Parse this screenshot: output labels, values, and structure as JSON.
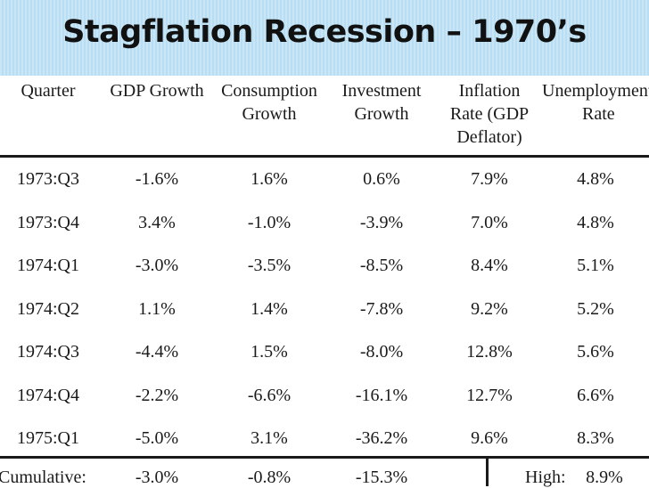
{
  "title": "Stagflation Recession – 1970’s",
  "headers": [
    [
      "Quarter"
    ],
    [
      "GDP Growth"
    ],
    [
      "Consumption",
      "Growth"
    ],
    [
      "Investment",
      "Growth"
    ],
    [
      "Inflation",
      "Rate (GDP",
      "Deflator)"
    ],
    [
      "Unemployment",
      "Rate"
    ]
  ],
  "rows": [
    [
      "1973:Q3",
      "-1.6%",
      "1.6%",
      "0.6%",
      "7.9%",
      "4.8%"
    ],
    [
      "1973:Q4",
      "3.4%",
      "-1.0%",
      "-3.9%",
      "7.0%",
      "4.8%"
    ],
    [
      "1974:Q1",
      "-3.0%",
      "-3.5%",
      "-8.5%",
      "8.4%",
      "5.1%"
    ],
    [
      "1974:Q2",
      "1.1%",
      "1.4%",
      "-7.8%",
      "9.2%",
      "5.2%"
    ],
    [
      "1974:Q3",
      "-4.4%",
      "1.5%",
      "-8.0%",
      "12.8%",
      "5.6%"
    ],
    [
      "1974:Q4",
      "-2.2%",
      "-6.6%",
      "-16.1%",
      "12.7%",
      "6.6%"
    ],
    [
      "1975:Q1",
      "-5.0%",
      "3.1%",
      "-36.2%",
      "9.6%",
      "8.3%"
    ]
  ],
  "cumulative": {
    "label": "Cumulative:",
    "gdp": "-3.0%",
    "consumption": "-0.8%",
    "investment": "-15.3%",
    "high_label": "High:",
    "high_value": "8.9%"
  }
}
